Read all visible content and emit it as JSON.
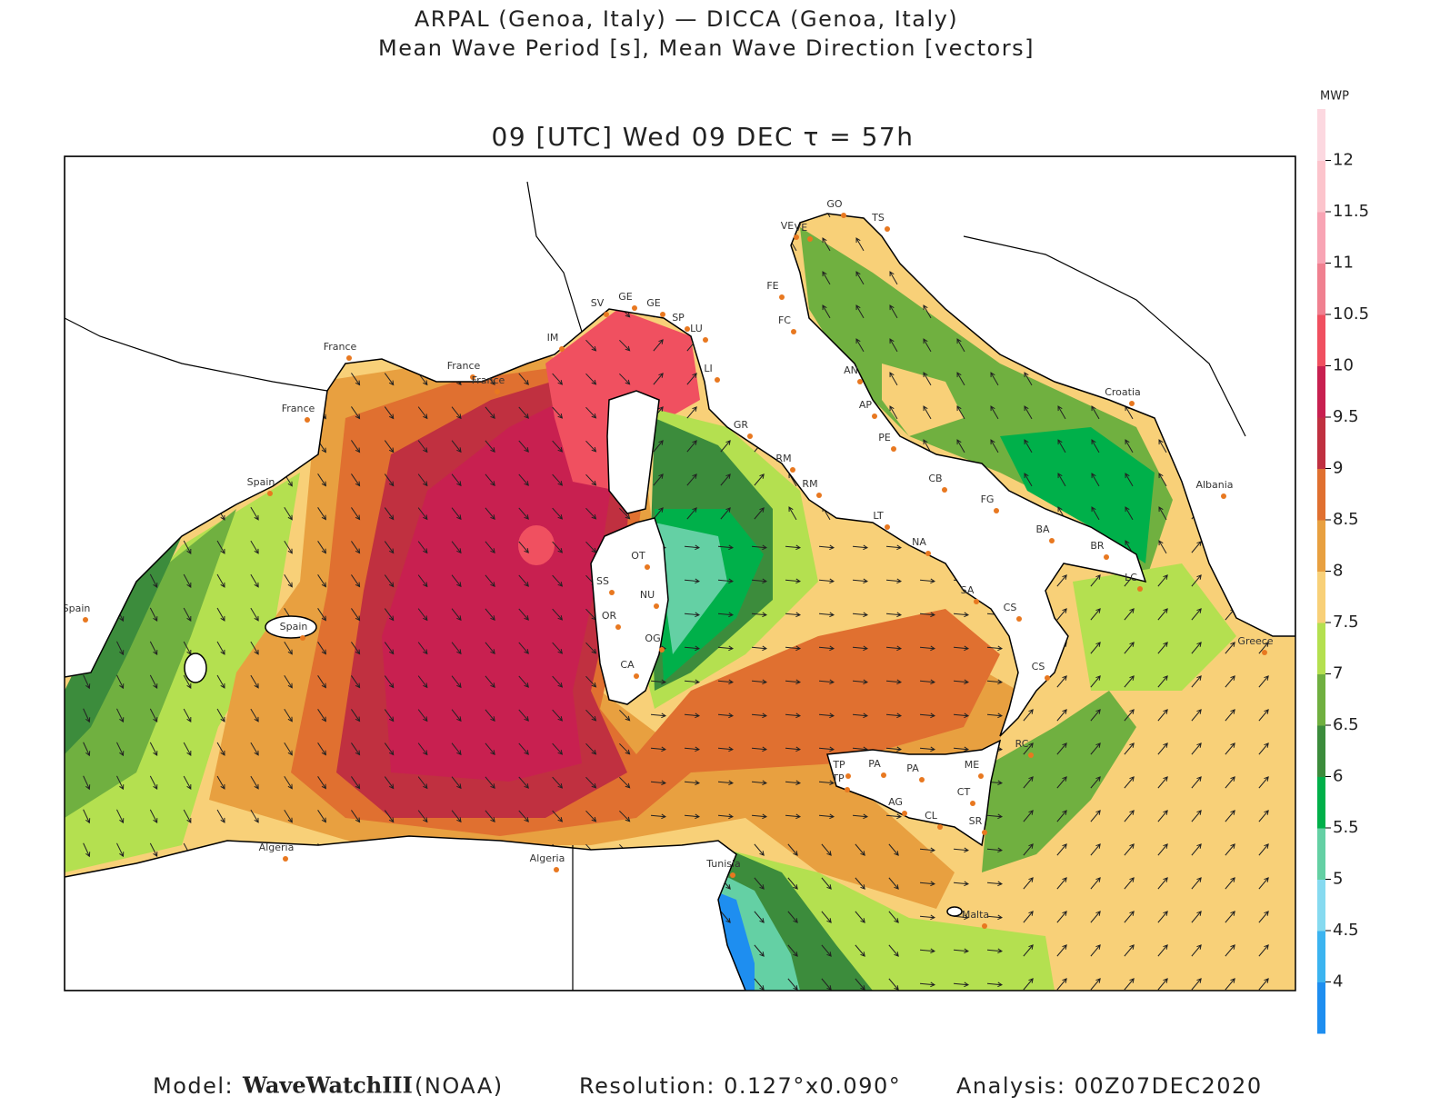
{
  "header": {
    "line1": "ARPAL (Genoa, Italy)  —  DICCA (Genoa, Italy)",
    "line2": "Mean Wave Period [s], Mean Wave Direction [vectors]",
    "time": "09 [UTC] Wed 09 DEC  τ = 57h"
  },
  "colorbar": {
    "label": "MWP",
    "range": [
      3.5,
      12.5
    ],
    "ticks": [
      4,
      4.5,
      5,
      5.5,
      6,
      6.5,
      7,
      7.5,
      8,
      8.5,
      9,
      9.5,
      10,
      10.5,
      11,
      11.5,
      12
    ],
    "colors": [
      "#1e8ef0",
      "#3cb4f0",
      "#86daf0",
      "#64d0a4",
      "#00b04a",
      "#3c8c3c",
      "#70b040",
      "#b4e050",
      "#f8d078",
      "#e8a040",
      "#e07030",
      "#c03040",
      "#c82050",
      "#f05060",
      "#f08090",
      "#f8a4b4",
      "#fcc4cc",
      "#fcd8e0"
    ]
  },
  "places": [
    "France",
    "France",
    "France",
    "France",
    "Spain",
    "Spain",
    "Spain",
    "Algeria",
    "Algeria",
    "Tunisia",
    "Malta",
    "Croatia",
    "Albania",
    "Greece",
    "SV",
    "GE",
    "GE",
    "SP",
    "LU",
    "IM",
    "LI",
    "GR",
    "RM",
    "RM",
    "LT",
    "NA",
    "SA",
    "CS",
    "CS",
    "RC",
    "ME",
    "CT",
    "SR",
    "PA",
    "PA",
    "TP",
    "TP",
    "AG",
    "CL",
    "CA",
    "OR",
    "OG",
    "NU",
    "SS",
    "OT",
    "VE",
    "VE",
    "GO",
    "TS",
    "FE",
    "FC",
    "AN",
    "AP",
    "PE",
    "CB",
    "FG",
    "BA",
    "BR",
    "LC"
  ],
  "footer": {
    "model_label": "Model:",
    "model": "WaveWatchIII",
    "model_source": "(NOAA)",
    "resolution": "Resolution: 0.127°x0.090°",
    "analysis": "Analysis: 00Z07DEC2020"
  }
}
